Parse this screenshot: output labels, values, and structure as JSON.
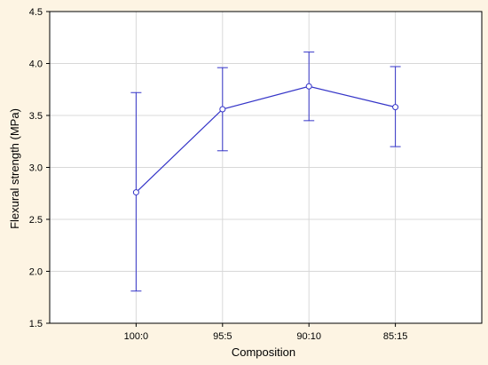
{
  "colors": {
    "background": "#fdf4e3",
    "plot_background": "#ffffff",
    "series": "#3535c8",
    "grid": "#d8d8d8",
    "axis": "#000000"
  },
  "chart_data": {
    "type": "line",
    "title": "",
    "xlabel": "Composition",
    "ylabel": "Flexural strength (MPa)",
    "categories": [
      "100:0",
      "95:5",
      "90:10",
      "85:15"
    ],
    "ylim": [
      1.5,
      4.5
    ],
    "yticks": [
      "1.5",
      "2.0",
      "2.5",
      "3.0",
      "3.5",
      "4.0",
      "4.5"
    ],
    "grid": true,
    "legend": "none",
    "series": [
      {
        "values": [
          2.76,
          3.56,
          3.78,
          3.58
        ],
        "error_low": [
          1.81,
          3.16,
          3.45,
          3.2
        ],
        "error_high": [
          3.72,
          3.96,
          4.11,
          3.97
        ],
        "marker": "circle"
      }
    ]
  }
}
